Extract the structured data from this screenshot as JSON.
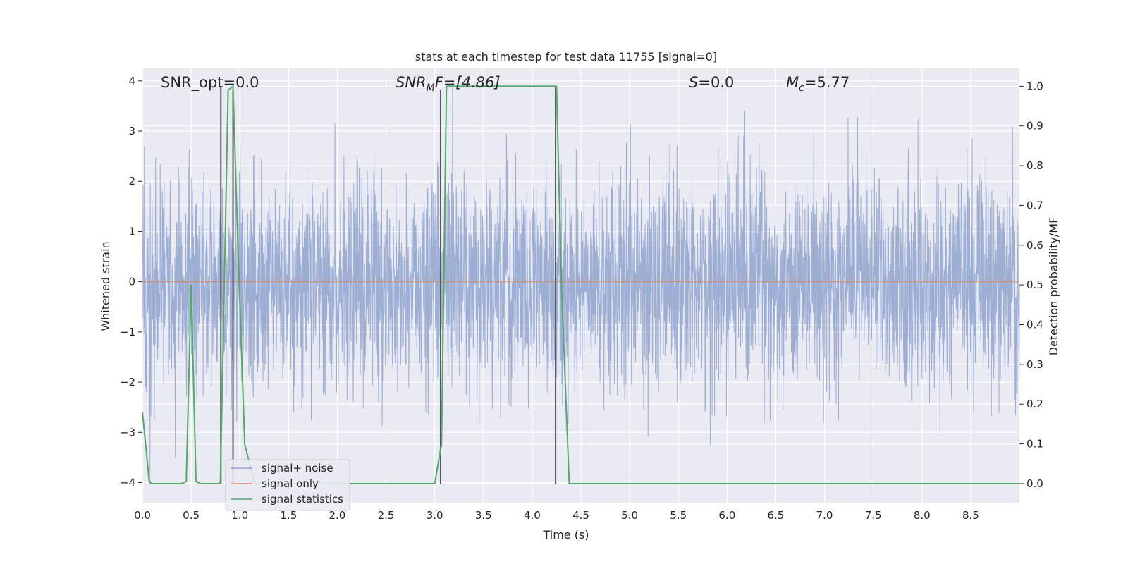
{
  "chart_data": {
    "type": "line",
    "title": "stats at each timestep for test data 11755 [signal=0]",
    "xlabel": "Time (s)",
    "ylabel": "Whitened strain",
    "y2label": "Detection probability/MF",
    "xlim": [
      0,
      9.0
    ],
    "ylim": [
      -4.4,
      4.25
    ],
    "y2lim": [
      -0.048,
      1.045
    ],
    "xticks": [
      "0.0",
      "0.5",
      "1.0",
      "1.5",
      "2.0",
      "2.5",
      "3.0",
      "3.5",
      "4.0",
      "4.5",
      "5.0",
      "5.5",
      "6.0",
      "6.5",
      "7.0",
      "7.5",
      "8.0",
      "8.5"
    ],
    "yticks": [
      "4",
      "3",
      "2",
      "1",
      "0",
      "−1",
      "−2",
      "−3",
      "−4"
    ],
    "y2ticks": [
      "1.0",
      "0.9",
      "0.8",
      "0.7",
      "0.6",
      "0.5",
      "0.4",
      "0.3",
      "0.2",
      "0.1",
      "0.0"
    ],
    "grid": true,
    "legend_position": "lower-left",
    "annotations": {
      "snr_opt": "SNR_opt=0.0",
      "snr_mf_main": "SNR",
      "snr_mf_sub": "M",
      "snr_mf_rest": "F=[4.86]",
      "s_var": "S",
      "s_rest": "=0.0",
      "mc_var": "M",
      "mc_sub": "c",
      "mc_rest": "=5.77"
    },
    "series": [
      {
        "name": "signal+ noise",
        "color": "#8fa3cf",
        "description_stats": {
          "mean": 0,
          "std": 1.0
        }
      },
      {
        "name": "signal only",
        "color": "#dd8452",
        "values_constant": 0
      },
      {
        "name": "signal statistics",
        "color": "#55a868",
        "x": [
          0.0,
          0.07,
          0.1,
          0.15,
          0.4,
          0.45,
          0.5,
          0.55,
          0.6,
          0.78,
          0.8,
          0.88,
          0.93,
          0.98,
          1.05,
          1.15,
          1.5,
          2.5,
          3.0,
          3.07,
          3.12,
          3.2,
          4.25,
          4.3,
          4.38,
          4.5,
          9.0
        ],
        "y": [
          0.18,
          0.005,
          0.0,
          0.0,
          0.0,
          0.005,
          0.5,
          0.005,
          0.0,
          0.0,
          0.005,
          0.99,
          1.0,
          0.6,
          0.1,
          0.0,
          0.0,
          0.0,
          0.0,
          0.1,
          1.0,
          1.0,
          1.0,
          0.5,
          0.0,
          0.0,
          0.0
        ]
      }
    ],
    "vertical_markers": [
      {
        "x": 0.805,
        "y_top": 1.0
      },
      {
        "x": 0.93,
        "y_top": 1.0
      },
      {
        "x": 3.06,
        "y_top": 0.99
      },
      {
        "x": 4.24,
        "y_top": 1.0
      }
    ]
  }
}
